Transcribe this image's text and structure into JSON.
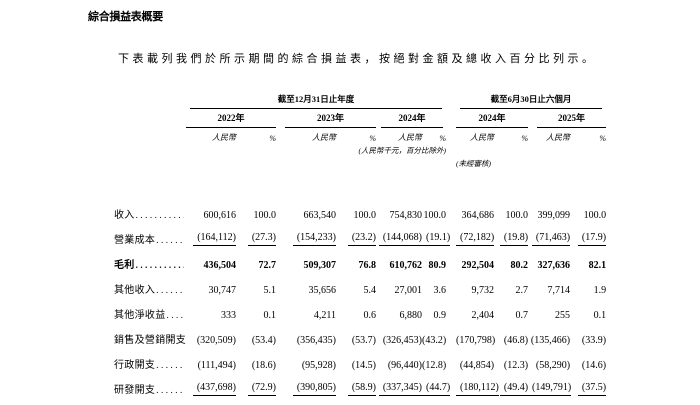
{
  "page": {
    "title": "綜合損益表概要",
    "intro": "下表載列我們於所示期間的綜合損益表，按絕對金額及總收入百分比列示。"
  },
  "table": {
    "groups": [
      {
        "label": "截至12月31日止年度",
        "years": [
          "2022年",
          "2023年",
          "2024年"
        ]
      },
      {
        "label": "截至6月30日止六個月",
        "years": [
          "2024年",
          "2025年"
        ]
      }
    ],
    "unit_label": "人民幣",
    "percent_label": "%",
    "unit_note": "(人民幣千元，百分比除外)",
    "unaudited_note": "(未經審核)",
    "leader": "......................................",
    "rows": [
      {
        "label": "收入",
        "bold": false,
        "underline": false,
        "values": [
          "600,616",
          "100.0",
          "663,540",
          "100.0",
          "754,830",
          "100.0",
          "364,686",
          "100.0",
          "399,099",
          "100.0"
        ]
      },
      {
        "label": "營業成本",
        "bold": false,
        "underline": true,
        "values": [
          "(164,112)",
          "(27.3)",
          "(154,233)",
          "(23.2)",
          "(144,068)",
          "(19.1)",
          "(72,182)",
          "(19.8)",
          "(71,463)",
          "(17.9)"
        ]
      },
      {
        "label": "毛利",
        "bold": true,
        "underline": false,
        "values": [
          "436,504",
          "72.7",
          "509,307",
          "76.8",
          "610,762",
          "80.9",
          "292,504",
          "80.2",
          "327,636",
          "82.1"
        ]
      },
      {
        "label": "其他收入",
        "bold": false,
        "underline": false,
        "values": [
          "30,747",
          "5.1",
          "35,656",
          "5.4",
          "27,001",
          "3.6",
          "9,732",
          "2.7",
          "7,714",
          "1.9"
        ]
      },
      {
        "label": "其他淨收益",
        "bold": false,
        "underline": false,
        "values": [
          "333",
          "0.1",
          "4,211",
          "0.6",
          "6,880",
          "0.9",
          "2,404",
          "0.7",
          "255",
          "0.1"
        ]
      },
      {
        "label": "銷售及營銷開支",
        "bold": false,
        "underline": false,
        "values": [
          "(320,509)",
          "(53.4)",
          "(356,435)",
          "(53.7)",
          "(326,453)",
          "(43.2)",
          "(170,798)",
          "(46.8)",
          "(135,466)",
          "(33.9)"
        ]
      },
      {
        "label": "行政開支",
        "bold": false,
        "underline": false,
        "values": [
          "(111,494)",
          "(18.6)",
          "(95,928)",
          "(14.5)",
          "(96,440)",
          "(12.8)",
          "(44,854)",
          "(12.3)",
          "(58,290)",
          "(14.6)"
        ]
      },
      {
        "label": "研發開支",
        "bold": false,
        "underline": true,
        "values": [
          "(437,698)",
          "(72.9)",
          "(390,805)",
          "(58.9)",
          "(337,345)",
          "(44.7)",
          "(180,112)",
          "(49.4)",
          "(149,791)",
          "(37.5)"
        ]
      }
    ]
  }
}
